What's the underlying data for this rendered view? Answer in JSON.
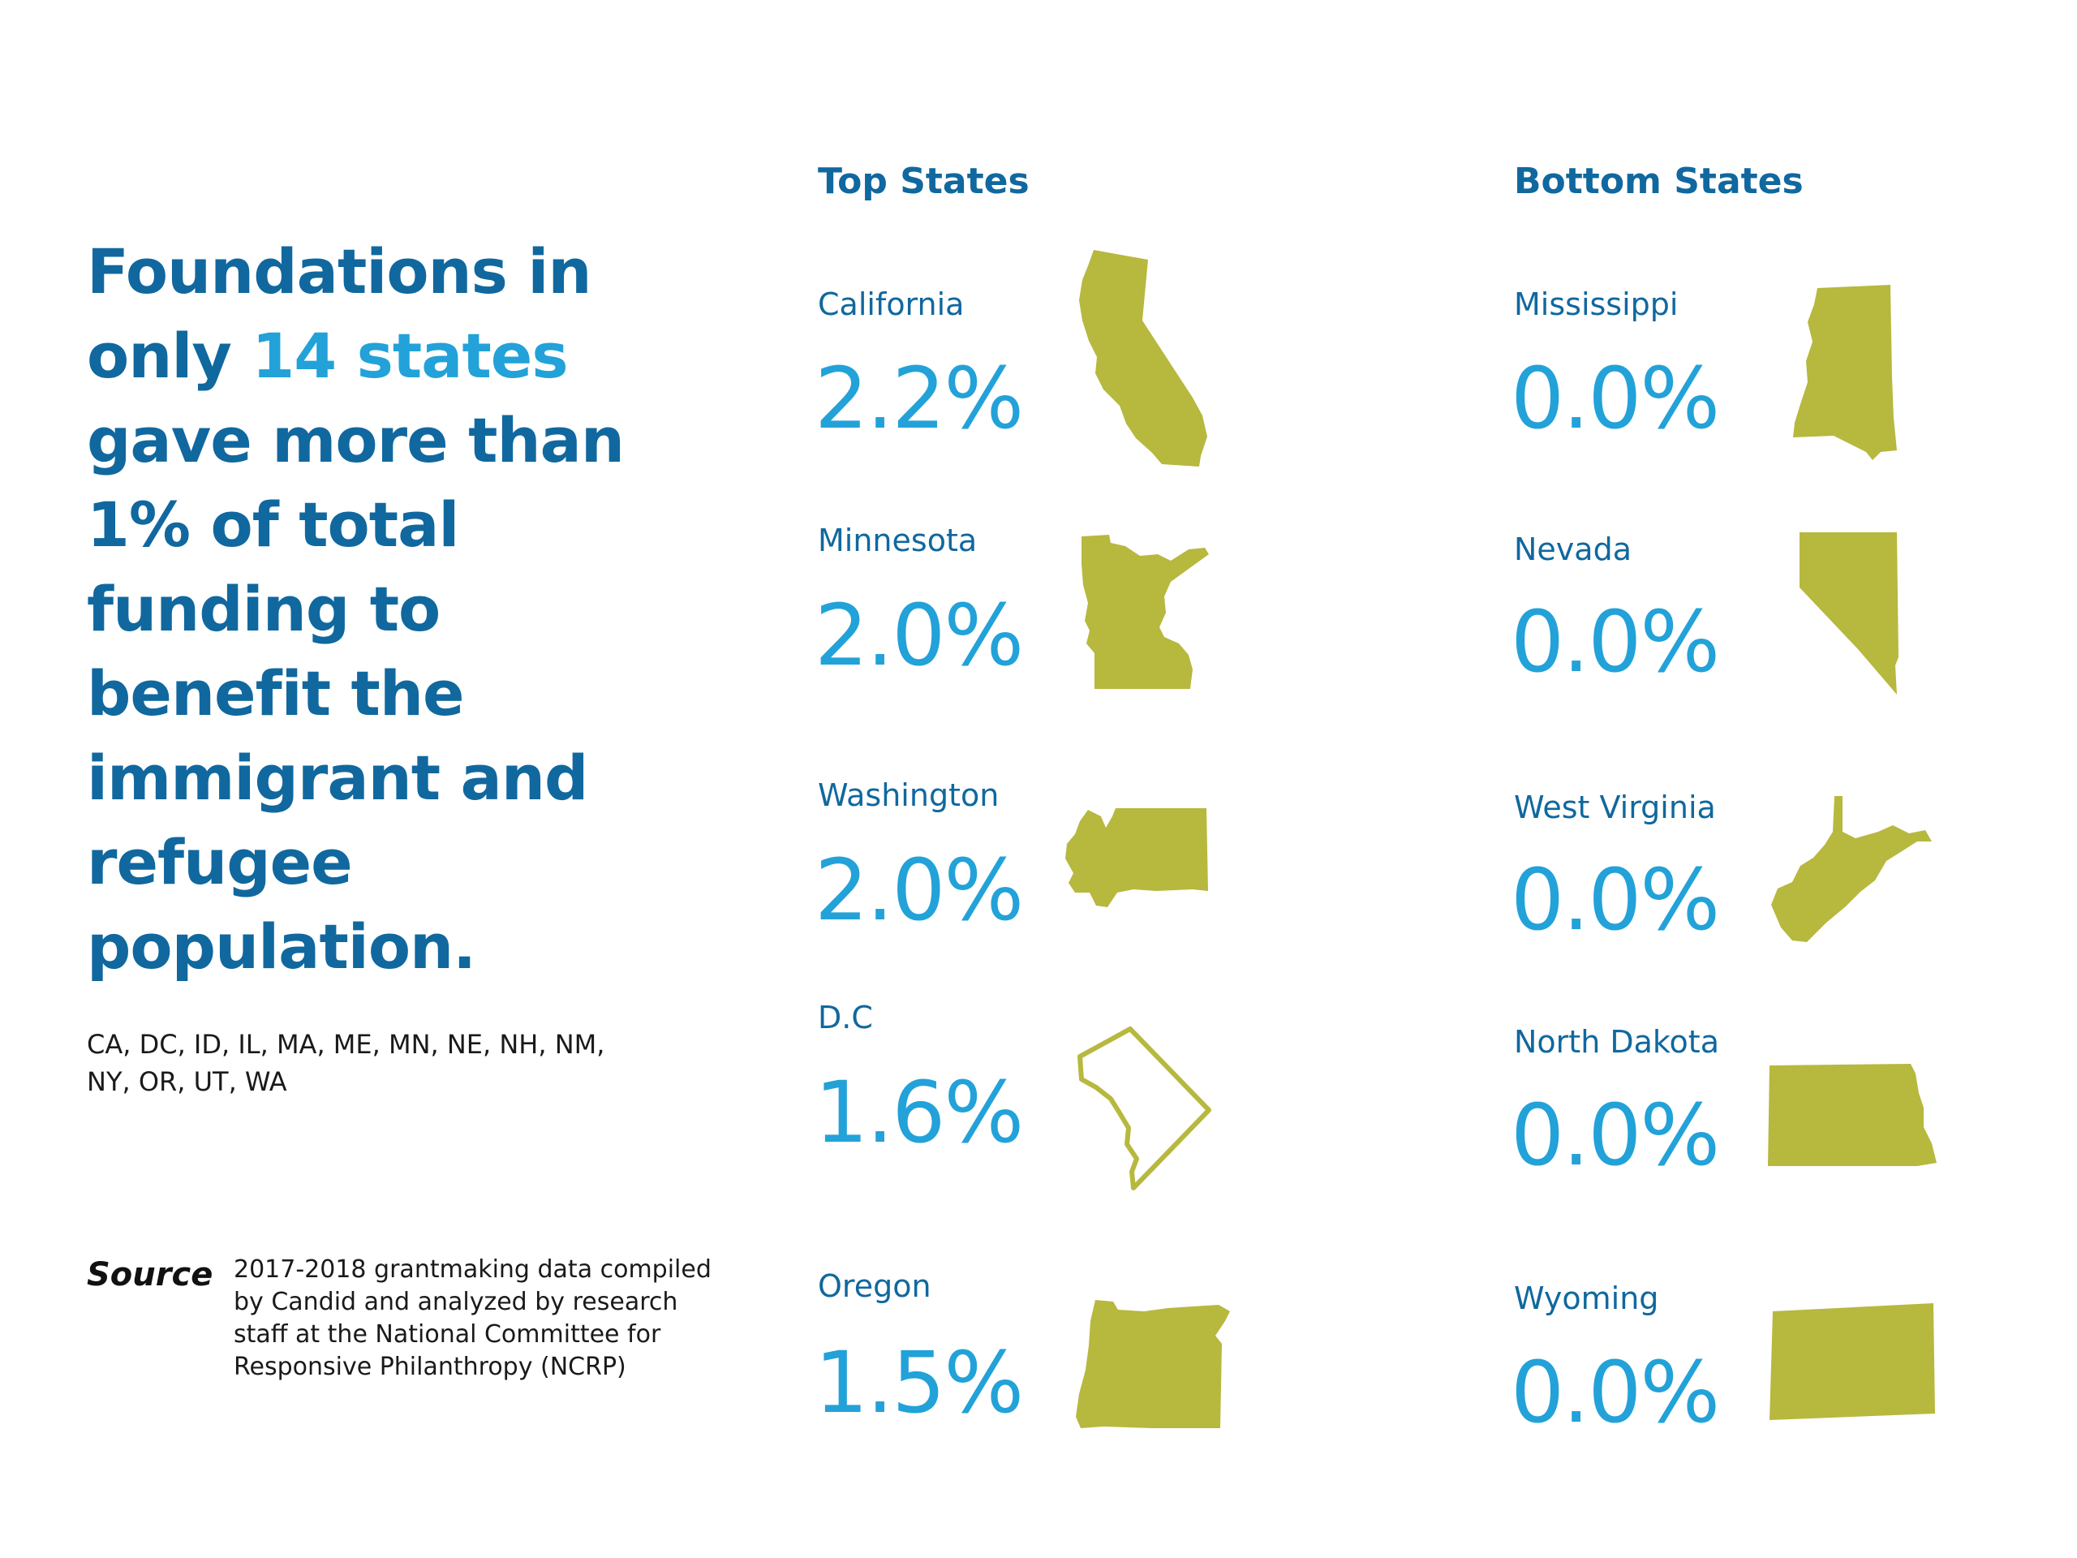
{
  "headline": {
    "part1": "Foundations in only ",
    "highlight": "14 states",
    "part2": " gave more than 1% of total funding to benefit the immigrant and refugee population."
  },
  "state_list": "CA, DC, ID, IL, MA, ME, MN, NE, NH, NM, NY, OR, UT, WA",
  "source": {
    "label": "Source",
    "text": "2017-2018 grantmaking data compiled by Candid and analyzed by research staff at the National Committee for Responsive Philanthropy (NCRP)"
  },
  "colors": {
    "dark_blue": "#10689f",
    "light_blue": "#22a2d8",
    "shape_green": "#b7b83e"
  },
  "top_states": {
    "heading": "Top States",
    "items": [
      {
        "name": "California",
        "value": "2.2%",
        "icon": "california-map-icon"
      },
      {
        "name": "Minnesota",
        "value": "2.0%",
        "icon": "minnesota-map-icon"
      },
      {
        "name": "Washington",
        "value": "2.0%",
        "icon": "washington-map-icon"
      },
      {
        "name": "D.C",
        "value": "1.6%",
        "icon": "dc-map-outline-icon"
      },
      {
        "name": "Oregon",
        "value": "1.5%",
        "icon": "oregon-map-icon"
      }
    ]
  },
  "bottom_states": {
    "heading": "Bottom States",
    "items": [
      {
        "name": "Mississippi",
        "value": "0.0%",
        "icon": "mississippi-map-icon"
      },
      {
        "name": "Nevada",
        "value": "0.0%",
        "icon": "nevada-map-icon"
      },
      {
        "name": "West Virginia",
        "value": "0.0%",
        "icon": "west-virginia-map-icon"
      },
      {
        "name": "North Dakota",
        "value": "0.0%",
        "icon": "north-dakota-map-icon"
      },
      {
        "name": "Wyoming",
        "value": "0.0%",
        "icon": "wyoming-map-icon"
      }
    ]
  }
}
